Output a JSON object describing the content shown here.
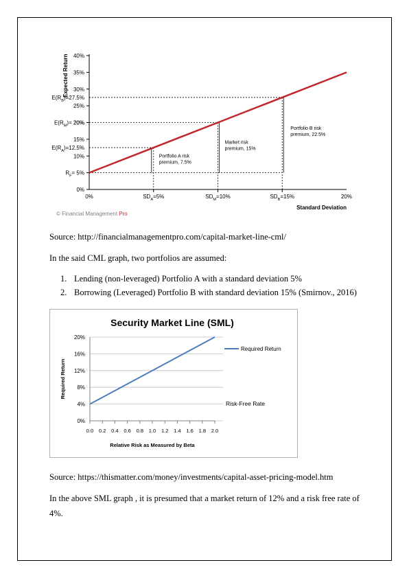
{
  "cml_chart": {
    "y_axis_title": "Expected Return",
    "x_axis_title": "Standard Deviation",
    "y_ticks": [
      "0%",
      "5%",
      "10%",
      "15%",
      "20%",
      "25%",
      "30%",
      "35%",
      "40%"
    ],
    "x_ticks": [
      "0%",
      "20%"
    ],
    "y_special_labels": {
      "rf": "R_F= 5%",
      "ra": "E(R_A)=12.5%",
      "rm": "E(R_M)= 20%",
      "rb": "E(R_B)=27.5%"
    },
    "x_special_labels": {
      "sda": "SD_A=5%",
      "sdm": "SD_M=10%",
      "sdb": "SD_B=15%"
    },
    "annotations": {
      "a_line1": "Portfolio A risk",
      "a_line2": "premium, 7.5%",
      "m_line1": "Market risk",
      "m_line2": "premium, 15%",
      "b_line1": "Portfolio B risk",
      "b_line2": "premium, 22.5%"
    },
    "watermark": "© Financial Management Pro",
    "colors": {
      "line": "#c0272d",
      "axis": "#000000",
      "watermark": "#7f7f7f",
      "watermark_accent": "#c0272d"
    }
  },
  "text": {
    "source1": "Source: http://financialmanagementpro.com/capital-market-line-cml/",
    "intro": "In the said CML graph, two portfolios are assumed:",
    "list": [
      {
        "num": "1.",
        "text": "Lending (non-leveraged) Portfolio A with a standard deviation 5%"
      },
      {
        "num": "2.",
        "text": "Borrowing (Leveraged) Portfolio B with standard deviation 15% (Smirnov., 2016)"
      }
    ],
    "source2": "Source: https://thismatter.com/money/investments/capital-asset-pricing-model.htm",
    "conclusion_line1": "In the above SML graph , it is presumed that a market return of 12% and a risk free rate of",
    "conclusion_line2": "4%."
  },
  "chart_data": [
    {
      "type": "line",
      "title": "",
      "xlabel": "Standard Deviation",
      "ylabel": "Expected Return",
      "xlim": [
        0,
        20
      ],
      "ylim": [
        0,
        40
      ],
      "x_unit": "%",
      "y_unit": "%",
      "series": [
        {
          "name": "",
          "x": [
            0,
            5,
            10,
            15,
            20
          ],
          "y": [
            5,
            12.5,
            20,
            27.5,
            35
          ]
        }
      ],
      "grid": false
    },
    {
      "type": "line",
      "title": "Security Market Line (SML)",
      "xlabel": "Relative Risk as Measured by Beta",
      "ylabel": "Required Return",
      "categories": [
        "0.0",
        "0.2",
        "0.4",
        "0.6",
        "0.8",
        "1.0",
        "1.2",
        "1.4",
        "1.6",
        "1.8",
        "2.0"
      ],
      "y_ticks": [
        "0%",
        "4%",
        "8%",
        "12%",
        "16%",
        "20%"
      ],
      "xlim": [
        0,
        2
      ],
      "ylim": [
        0,
        20
      ],
      "series": [
        {
          "name": "Required Return",
          "x": [
            0,
            2
          ],
          "y": [
            4,
            20
          ]
        }
      ],
      "annotation": "Risk-Free Rate",
      "legend_position": "right",
      "grid": true,
      "colors": {
        "line": "#4a7ebb",
        "grid": "#bfbfbf"
      }
    }
  ]
}
